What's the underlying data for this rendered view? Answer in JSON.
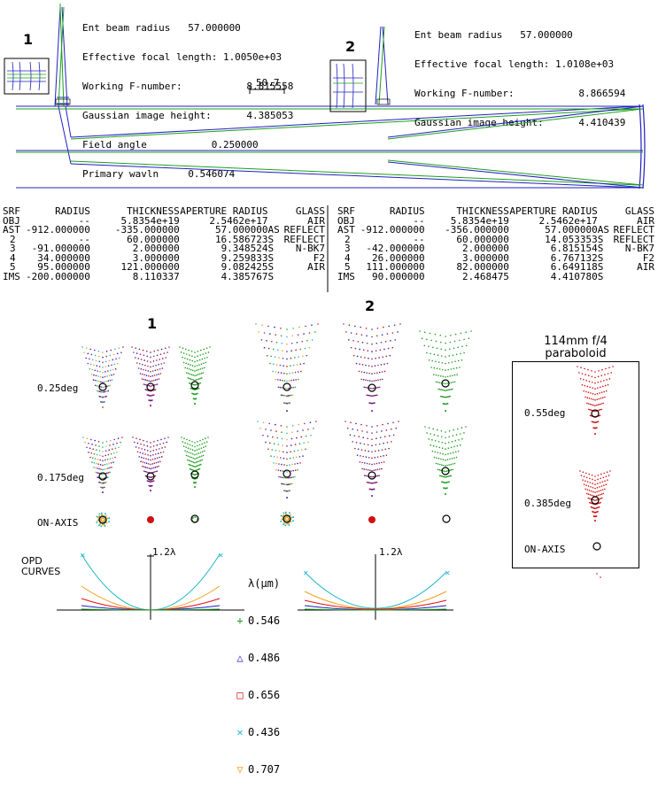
{
  "panel1": {
    "number": "1",
    "info": [
      "Ent beam radius   57.000000",
      "Effective focal length: 1.0050e+03",
      "Working F-number:           8.815558",
      "Gaussian image height:      4.385053",
      "Field angle           0.250000",
      "Primary wavln     0.546074"
    ],
    "scale_label": "50.7",
    "headers": [
      "SRF",
      "RADIUS",
      "THICKNESS",
      "APERTURE RADIUS",
      "GLASS"
    ],
    "rows": [
      [
        "OBJ",
        "--",
        "5.8354e+19",
        "2.5462e+17",
        "",
        "AIR"
      ],
      [
        "AST",
        "-912.000000",
        "-335.000000",
        "57.000000",
        "AS",
        "REFLECT"
      ],
      [
        "2",
        "--",
        "60.000000",
        "16.586723",
        "S",
        "REFLECT"
      ],
      [
        "3",
        "-91.000000",
        "2.000000",
        "9.348524",
        "S",
        "N-BK7"
      ],
      [
        "4",
        "34.000000",
        "3.000000",
        "9.259833",
        "S",
        "F2"
      ],
      [
        "5",
        "95.000000",
        "121.000000",
        "9.082425",
        "S",
        "AIR"
      ],
      [
        "IMS",
        "-200.000000",
        "8.110337",
        "4.385767",
        "S",
        ""
      ]
    ]
  },
  "panel2": {
    "number": "2",
    "info": [
      "Ent beam radius   57.000000",
      "Effective focal length: 1.0108e+03",
      "Working F-number:           8.866594",
      "Gaussian image height:      4.410439"
    ],
    "headers": [
      "SRF",
      "RADIUS",
      "THICKNESS",
      "APERTURE RADIUS",
      "GLASS"
    ],
    "rows": [
      [
        "OBJ",
        "--",
        "5.8354e+19",
        "2.5462e+17",
        "",
        "AIR"
      ],
      [
        "AST",
        "-912.000000",
        "-356.000000",
        "57.000000",
        "AS",
        "REFLECT"
      ],
      [
        "2",
        "--",
        "60.000000",
        "14.053353",
        "S",
        "REFLECT"
      ],
      [
        "3",
        "-42.000000",
        "2.000000",
        "6.815154",
        "S",
        "N-BK7"
      ],
      [
        "4",
        "26.000000",
        "3.000000",
        "6.767132",
        "S",
        "F2"
      ],
      [
        "5",
        "111.000000",
        "82.000000",
        "6.649118",
        "S",
        "AIR"
      ],
      [
        "IMS",
        "90.000000",
        "2.468475",
        "4.410780",
        "S",
        ""
      ]
    ]
  },
  "spots": {
    "label1": "1",
    "label2": "2",
    "fields": [
      "0.25deg",
      "0.175deg",
      "ON-AXIS"
    ]
  },
  "paraboloid": {
    "title1": "114mm f/4",
    "title2": "paraboloid",
    "fields": [
      "0.55deg",
      "0.385deg",
      "ON-AXIS"
    ]
  },
  "opd": {
    "title1": "OPD",
    "title2": "CURVES",
    "scale1": "1.2λ",
    "scale2": "1.2λ",
    "legend_title": "λ(μm)",
    "legend": [
      {
        "symbol": "+",
        "value": "0.546",
        "color": "#1e9e1e"
      },
      {
        "symbol": "△",
        "value": "0.486",
        "color": "#2020c0"
      },
      {
        "symbol": "□",
        "value": "0.656",
        "color": "#e01010"
      },
      {
        "symbol": "✕",
        "value": "0.436",
        "color": "#20b8c8"
      },
      {
        "symbol": "▽",
        "value": "0.707",
        "color": "#f0a020"
      }
    ]
  },
  "colors": {
    "green": "#1e9e1e",
    "blue": "#2020c0",
    "red": "#d01010",
    "cyan": "#20b8c8",
    "orange": "#f0a020",
    "purple": "#8a2090"
  }
}
